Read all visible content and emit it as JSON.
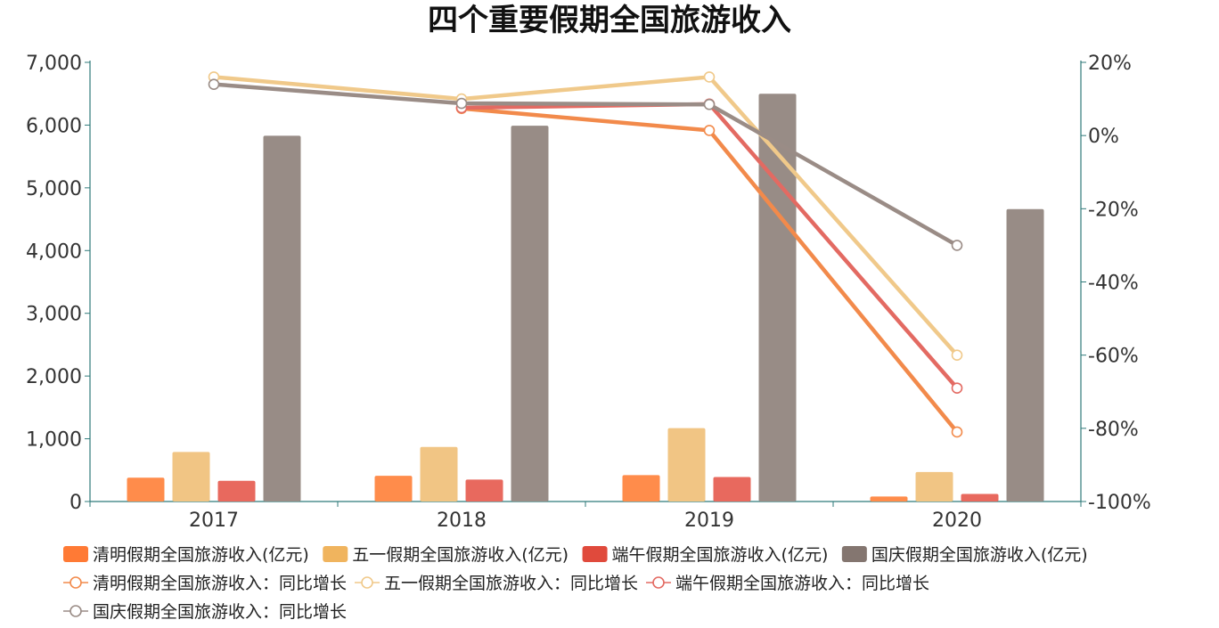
{
  "chart_data": {
    "type": "bar",
    "title": "四个重要假期全国旅游收入",
    "categories": [
      "2017",
      "2018",
      "2019",
      "2020"
    ],
    "left_axis": {
      "min": 0,
      "max": 7000,
      "ticks": [
        "0",
        "1,000",
        "2,000",
        "3,000",
        "4,000",
        "5,000",
        "6,000",
        "7,000"
      ]
    },
    "right_axis": {
      "min": -100,
      "max": 20,
      "ticks": [
        "-100%",
        "-80%",
        "-60%",
        "-40%",
        "-20%",
        "0%",
        "20%"
      ]
    },
    "bar_series": [
      {
        "name": "清明假期全国旅游收入(亿元)",
        "color": "#FF8C4B",
        "legend_color": "#FF7A35",
        "values": [
          380,
          410,
          420,
          80
        ]
      },
      {
        "name": "五一假期全国旅游收入(亿元)",
        "color": "#F1C584",
        "legend_color": "#F0B45E",
        "values": [
          790,
          870,
          1170,
          470
        ]
      },
      {
        "name": "端午假期全国旅游收入(亿元)",
        "color": "#E8695E",
        "legend_color": "#E04A3C",
        "values": [
          330,
          350,
          390,
          120
        ]
      },
      {
        "name": "国庆假期全国旅游收入(亿元)",
        "color": "#988C86",
        "legend_color": "#847670",
        "values": [
          5830,
          5990,
          6500,
          4660
        ]
      }
    ],
    "line_series": [
      {
        "name": "清明假期全国旅游收入：同比增长",
        "color": "#F28A4B",
        "values": [
          null,
          7.4,
          1.4,
          -81
        ]
      },
      {
        "name": "五一假期全国旅游收入：同比增长",
        "color": "#F0C98A",
        "values": [
          16,
          10,
          16,
          -60
        ]
      },
      {
        "name": "端午假期全国旅游收入：同比增长",
        "color": "#E36A62",
        "values": [
          null,
          7.6,
          8.6,
          -69
        ]
      },
      {
        "name": "国庆假期全国旅游收入：同比增长",
        "color": "#9A8C86",
        "values": [
          14,
          8.8,
          8.5,
          -30
        ]
      }
    ],
    "axis_color": "#2F7A7A",
    "grid": false,
    "legend_position": "bottom"
  }
}
